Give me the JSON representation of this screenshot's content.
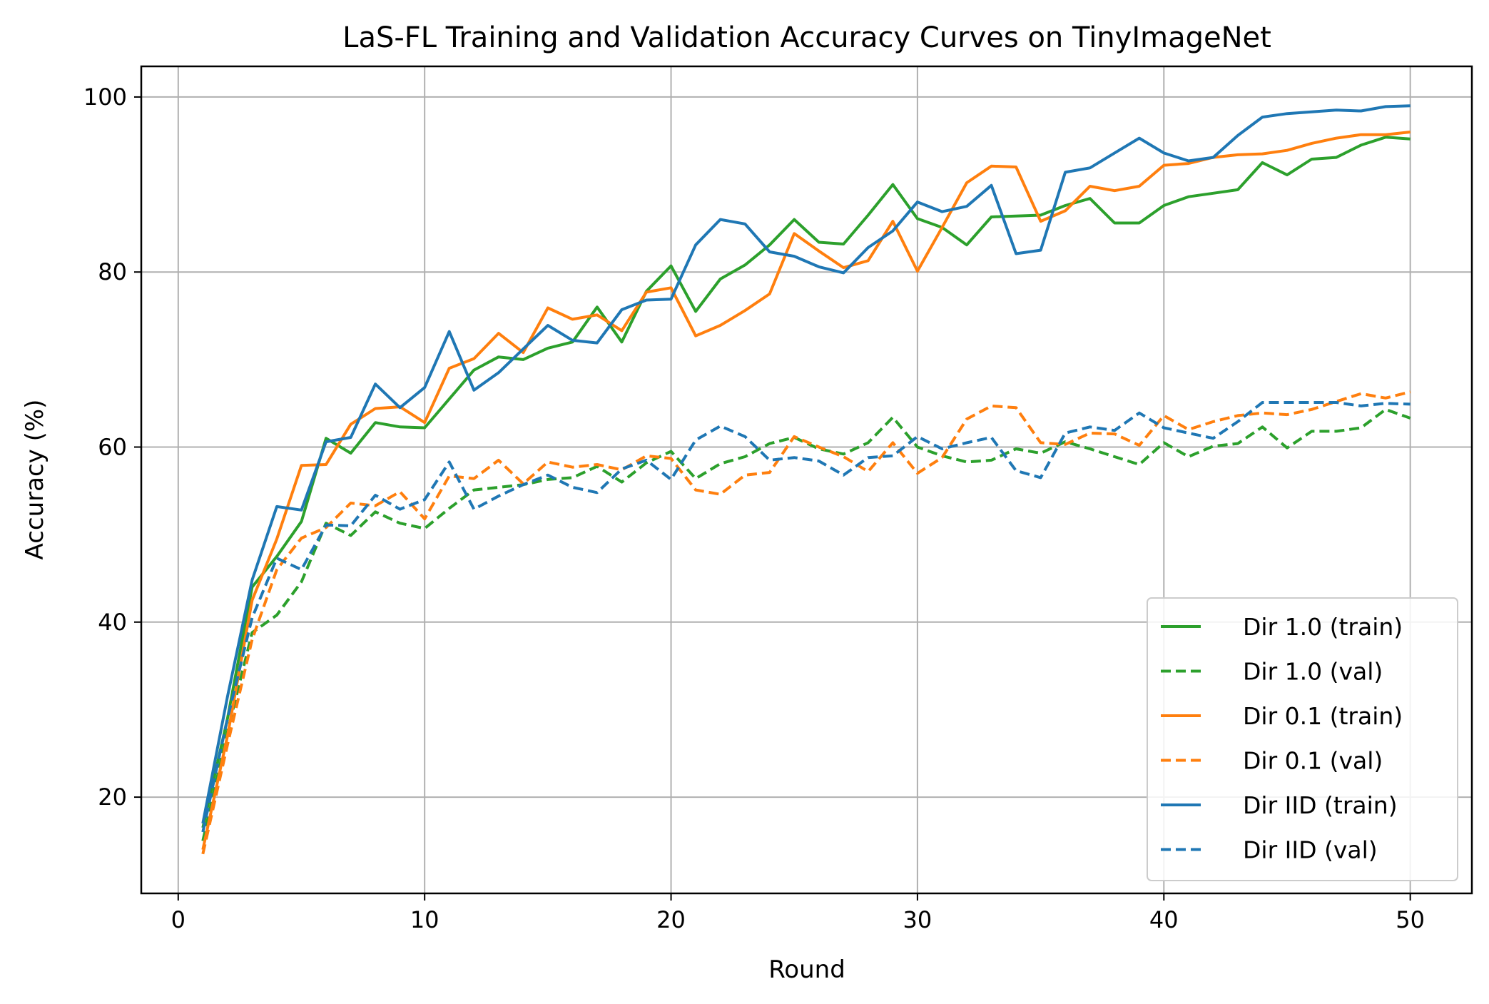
{
  "chart_data": {
    "type": "line",
    "title": "LaS-FL Training and Validation Accuracy Curves on TinyImageNet",
    "xlabel": "Round",
    "ylabel": "Accuracy (%)",
    "xlim": [
      -1.5,
      52.5
    ],
    "ylim": [
      9,
      103.5
    ],
    "xticks": [
      0,
      10,
      20,
      30,
      40,
      50
    ],
    "yticks": [
      20,
      40,
      60,
      80,
      100
    ],
    "grid": true,
    "legend_position": "lower-right",
    "x": [
      1,
      2,
      3,
      4,
      5,
      6,
      7,
      8,
      9,
      10,
      11,
      12,
      13,
      14,
      15,
      16,
      17,
      18,
      19,
      20,
      21,
      22,
      23,
      24,
      25,
      26,
      27,
      28,
      29,
      30,
      31,
      32,
      33,
      34,
      35,
      36,
      37,
      38,
      39,
      40,
      41,
      42,
      43,
      44,
      45,
      46,
      47,
      48,
      49,
      50
    ],
    "series": [
      {
        "name": "Dir 1.0 (train)",
        "color": "#2ca02c",
        "dash": "solid",
        "values": [
          16.5,
          29.0,
          44.0,
          47.5,
          51.5,
          61.0,
          59.3,
          62.8,
          62.3,
          62.2,
          65.5,
          68.8,
          70.3,
          70.0,
          71.3,
          72.0,
          76.0,
          72.0,
          77.8,
          80.7,
          75.5,
          79.2,
          80.8,
          83.1,
          86.0,
          83.4,
          83.2,
          86.5,
          90.0,
          86.1,
          85.1,
          83.1,
          86.3,
          86.4,
          86.5,
          87.6,
          88.4,
          85.6,
          85.6,
          87.6,
          88.6,
          89.0,
          89.4,
          92.5,
          91.1,
          92.9,
          93.1,
          94.5,
          95.4,
          95.2
        ]
      },
      {
        "name": "Dir 1.0 (val)",
        "color": "#2ca02c",
        "dash": "dashed",
        "values": [
          15.0,
          27.5,
          38.8,
          40.8,
          44.6,
          51.3,
          49.9,
          52.6,
          51.3,
          50.7,
          53.0,
          55.1,
          55.4,
          55.7,
          56.3,
          56.5,
          57.8,
          56.0,
          58.2,
          59.5,
          56.4,
          58.1,
          58.9,
          60.4,
          61.1,
          59.8,
          59.2,
          60.5,
          63.4,
          60.0,
          59.0,
          58.3,
          58.5,
          59.8,
          59.3,
          60.6,
          59.8,
          58.9,
          58.0,
          60.5,
          58.9,
          60.1,
          60.4,
          62.3,
          59.9,
          61.8,
          61.8,
          62.2,
          64.3,
          63.3
        ]
      },
      {
        "name": "Dir 0.1 (train)",
        "color": "#ff7f0e",
        "dash": "solid",
        "values": [
          14.0,
          27.0,
          42.5,
          49.5,
          57.9,
          58.0,
          62.6,
          64.4,
          64.6,
          62.8,
          69.0,
          70.1,
          73.0,
          70.8,
          75.9,
          74.6,
          75.1,
          73.3,
          77.7,
          78.2,
          72.7,
          73.9,
          75.6,
          77.5,
          84.4,
          82.4,
          80.5,
          81.3,
          85.8,
          80.1,
          85.1,
          90.2,
          92.1,
          92.0,
          85.8,
          87.0,
          89.8,
          89.3,
          89.8,
          92.2,
          92.4,
          93.1,
          93.4,
          93.5,
          93.9,
          94.7,
          95.3,
          95.7,
          95.7,
          96.0
        ]
      },
      {
        "name": "Dir 0.1 (val)",
        "color": "#ff7f0e",
        "dash": "dashed",
        "values": [
          13.5,
          26.0,
          38.0,
          46.0,
          49.6,
          50.8,
          53.6,
          53.3,
          54.9,
          51.8,
          56.7,
          56.4,
          58.5,
          55.8,
          58.3,
          57.7,
          58.0,
          57.4,
          59.0,
          58.7,
          55.1,
          54.6,
          56.8,
          57.1,
          61.2,
          60.0,
          58.9,
          57.2,
          60.5,
          57.0,
          58.8,
          63.2,
          64.7,
          64.5,
          60.5,
          60.3,
          61.6,
          61.5,
          60.2,
          63.6,
          62.0,
          62.9,
          63.6,
          63.9,
          63.7,
          64.3,
          65.2,
          66.1,
          65.6,
          66.3
        ]
      },
      {
        "name": "Dir IID (train)",
        "color": "#1f77b4",
        "dash": "solid",
        "values": [
          17.0,
          31.5,
          44.8,
          53.2,
          52.8,
          60.6,
          61.1,
          67.2,
          64.5,
          66.8,
          73.2,
          66.5,
          68.5,
          71.2,
          73.9,
          72.2,
          71.9,
          75.7,
          76.8,
          76.9,
          83.1,
          86.0,
          85.5,
          82.3,
          81.8,
          80.6,
          79.9,
          82.8,
          84.7,
          88.0,
          86.9,
          87.5,
          89.9,
          82.1,
          82.5,
          91.4,
          91.9,
          93.6,
          95.3,
          93.6,
          92.7,
          93.1,
          95.6,
          97.7,
          98.1,
          98.3,
          98.5,
          98.4,
          98.9,
          99.0
        ]
      },
      {
        "name": "Dir IID (val)",
        "color": "#1f77b4",
        "dash": "dashed",
        "values": [
          16.0,
          29.0,
          40.5,
          47.3,
          46.0,
          51.1,
          51.0,
          54.5,
          52.9,
          54.0,
          58.3,
          52.9,
          54.4,
          55.7,
          56.8,
          55.4,
          54.8,
          57.5,
          58.5,
          56.3,
          60.8,
          62.4,
          61.2,
          58.5,
          58.8,
          58.4,
          56.8,
          58.8,
          59.0,
          61.2,
          59.8,
          60.5,
          61.1,
          57.3,
          56.5,
          61.6,
          62.3,
          61.9,
          63.9,
          62.2,
          61.6,
          61.0,
          62.9,
          65.1,
          65.1,
          65.1,
          65.1,
          64.7,
          65.0,
          64.9
        ]
      }
    ]
  }
}
